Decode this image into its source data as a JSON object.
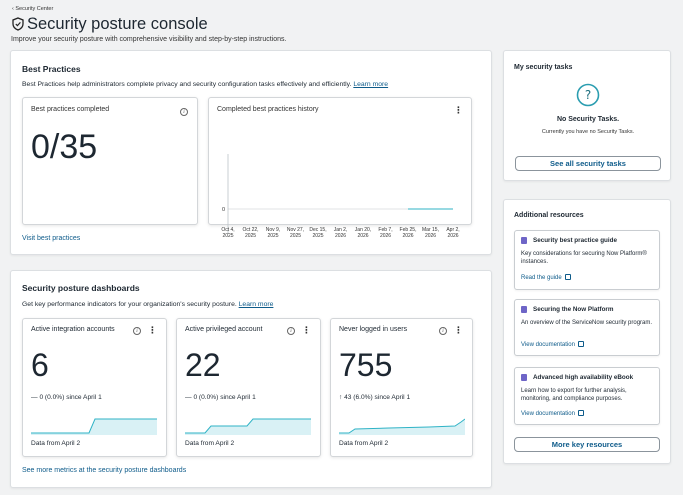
{
  "header": {
    "breadcrumb": "Security Center",
    "title": "Security posture console",
    "subtitle": "Improve your security posture with comprehensive visibility and step-by-step instructions."
  },
  "best_practices": {
    "title": "Best Practices",
    "description": "Best Practices help administrators complete privacy and security configuration tasks effectively and efficiently.",
    "learn_more": "Learn more",
    "completed_card": {
      "title": "Best practices completed",
      "value": "0/35"
    },
    "history_card": {
      "title": "Completed best practices history",
      "y_tick": "0",
      "x_ticks": [
        [
          "Oct 4,",
          "2025"
        ],
        [
          "Oct 22,",
          "2025"
        ],
        [
          "Nov 9,",
          "2025"
        ],
        [
          "Nov 27,",
          "2025"
        ],
        [
          "Dec 15,",
          "2025"
        ],
        [
          "Jan 2,",
          "2026"
        ],
        [
          "Jan 20,",
          "2026"
        ],
        [
          "Feb 7,",
          "2026"
        ],
        [
          "Feb 25,",
          "2026"
        ],
        [
          "Mar 15,",
          "2026"
        ],
        [
          "Apr 2,",
          "2026"
        ]
      ]
    },
    "visit_link": "Visit best practices"
  },
  "chart_data": {
    "type": "line",
    "x": [
      "Oct 4, 2025",
      "Oct 22, 2025",
      "Nov 9, 2025",
      "Nov 27, 2025",
      "Dec 15, 2025",
      "Jan 2, 2026",
      "Jan 20, 2026",
      "Feb 7, 2026",
      "Feb 25, 2026",
      "Mar 15, 2026",
      "Apr 2, 2026"
    ],
    "series": [
      {
        "values": [
          null,
          null,
          null,
          null,
          null,
          null,
          null,
          null,
          0,
          0,
          0
        ]
      }
    ],
    "title": "Completed best practices history",
    "y_ticks": [
      0
    ]
  },
  "dashboards": {
    "title": "Security posture dashboards",
    "description": "Get key performance indicators for your organization's security posture.",
    "learn_more": "Learn more",
    "kpis": [
      {
        "title": "Active integration accounts",
        "value": "6",
        "trend_icon": "dash",
        "trend_text": "0 (0.0%) since April 1",
        "footer": "Data from April 2"
      },
      {
        "title": "Active privileged account",
        "value": "22",
        "trend_icon": "dash",
        "trend_text": "0 (0.0%) since April 1",
        "footer": "Data from April 2"
      },
      {
        "title": "Never logged in users",
        "value": "755",
        "trend_icon": "up-arrow",
        "trend_text": "43 (6.0%) since April 1",
        "footer": "Data from April 2"
      }
    ],
    "more_link": "See more metrics at the security posture dashboards"
  },
  "tasks": {
    "title": "My security tasks",
    "empty_title": "No Security Tasks.",
    "empty_text": "Currently you have no Security Tasks.",
    "button": "See all security tasks"
  },
  "resources": {
    "title": "Additional resources",
    "items": [
      {
        "title": "Security best practice guide",
        "desc": "Key considerations for securing Now Platform® instances.",
        "link": "Read the guide"
      },
      {
        "title": "Securing the Now Platform",
        "desc": "An overview of the ServiceNow security program.",
        "link": "View documentation"
      },
      {
        "title": "Advanced high availability eBook",
        "desc": "Learn how to export for further analysis, monitoring, and compliance purposes.",
        "link": "View documentation"
      }
    ],
    "button": "More key resources"
  },
  "colors": {
    "accent": "#0e5b8a",
    "chart_line": "#2fb3c6",
    "doc_icon": "#6e65c7"
  }
}
